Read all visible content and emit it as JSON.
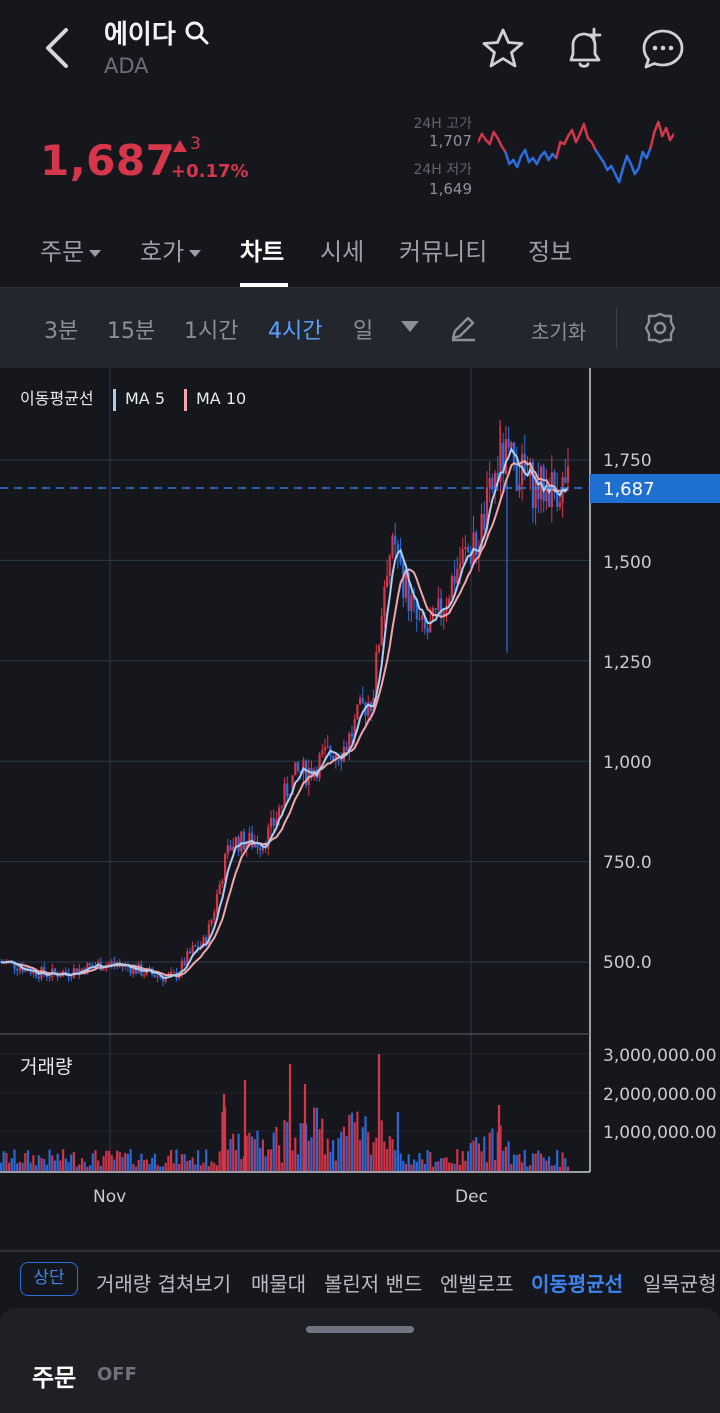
{
  "header": {
    "title": "에이다",
    "subtitle": "ADA"
  },
  "price": {
    "current": "1,687",
    "change_abs": "3",
    "change_pct": "+0.17%",
    "high_label": "24H 고가",
    "high_value": "1,707",
    "low_label": "24H 저가",
    "low_value": "1,649"
  },
  "tabs": [
    {
      "label": "주문",
      "dropdown": true
    },
    {
      "label": "호가",
      "dropdown": true
    },
    {
      "label": "차트",
      "active": true
    },
    {
      "label": "시세"
    },
    {
      "label": "커뮤니티"
    },
    {
      "label": "정보"
    }
  ],
  "intervals": {
    "items": [
      "3분",
      "15분",
      "1시간",
      "4시간",
      "일"
    ],
    "active": "4시간",
    "reset_label": "초기화"
  },
  "chart": {
    "legend": {
      "title": "이동평균선",
      "ma5": "MA 5",
      "ma10": "MA 10"
    },
    "price_ticks": [
      "1,750",
      "1,500",
      "1,250",
      "1,000",
      "750.0",
      "500.0"
    ],
    "current_price_label": "1,687",
    "volume_label": "거래량",
    "volume_ticks": [
      "3,000,000.00",
      "2,000,000.00",
      "1,000,000.00"
    ],
    "x_ticks": [
      "Nov",
      "Dec"
    ]
  },
  "chart_data": {
    "type": "candlestick",
    "price_axis": {
      "min": 380,
      "max": 1950,
      "ticks": [
        500,
        750,
        1000,
        1250,
        1500,
        1750
      ],
      "current": 1687
    },
    "volume_axis": {
      "ticks": [
        1000000,
        2000000,
        3000000
      ]
    },
    "x_ticks": [
      {
        "label": "Nov",
        "x": 110
      },
      {
        "label": "Dec",
        "x": 471
      }
    ],
    "series": [
      {
        "name": "MA 5",
        "color": "#a9cdf5"
      },
      {
        "name": "MA 10",
        "color": "#f0a6ab"
      }
    ],
    "close_path": [
      500,
      492,
      488,
      478,
      470,
      465,
      468,
      474,
      480,
      486,
      492,
      498,
      500,
      496,
      490,
      488,
      492,
      500,
      496,
      484,
      474,
      468,
      460,
      458,
      470,
      485,
      500,
      515,
      560,
      620,
      640,
      700,
      800,
      860,
      840,
      830,
      820,
      790,
      770,
      790,
      810,
      820,
      900,
      980,
      1040,
      1060,
      1020,
      1000,
      1030,
      1050,
      1040,
      1070,
      1100,
      1160,
      1200,
      1280,
      1450,
      1560,
      1530,
      1450,
      1400,
      1350,
      1320,
      1400,
      1440,
      1420,
      1460,
      1500,
      1540,
      1520,
      1560,
      1600,
      1700,
      1760,
      1720,
      1680,
      1700,
      1690,
      1680,
      1700,
      1690,
      1687
    ],
    "anchors": [
      {
        "x": 0,
        "v": 500
      },
      {
        "x": 50,
        "v": 470
      },
      {
        "x": 110,
        "v": 495
      },
      {
        "x": 170,
        "v": 462
      },
      {
        "x": 200,
        "v": 540
      },
      {
        "x": 235,
        "v": 800
      },
      {
        "x": 260,
        "v": 800
      },
      {
        "x": 300,
        "v": 970
      },
      {
        "x": 340,
        "v": 1030
      },
      {
        "x": 370,
        "v": 1150
      },
      {
        "x": 390,
        "v": 1520
      },
      {
        "x": 425,
        "v": 1320
      },
      {
        "x": 470,
        "v": 1520
      },
      {
        "x": 505,
        "v": 1750
      },
      {
        "x": 540,
        "v": 1680
      },
      {
        "x": 568,
        "v": 1687
      }
    ]
  },
  "indicators": {
    "badge": "상단",
    "items": [
      "거래량 겹쳐보기",
      "매물대",
      "볼린저 밴드",
      "엔벨로프",
      "이동평균선",
      "일목균형"
    ],
    "active": "이동평균선"
  },
  "order_panel": {
    "label": "주문",
    "state": "OFF"
  },
  "colors": {
    "up": "#d6364b",
    "down": "#2a6ee0",
    "accent": "#3c84ef",
    "price_tag": "#1f6fd1"
  }
}
